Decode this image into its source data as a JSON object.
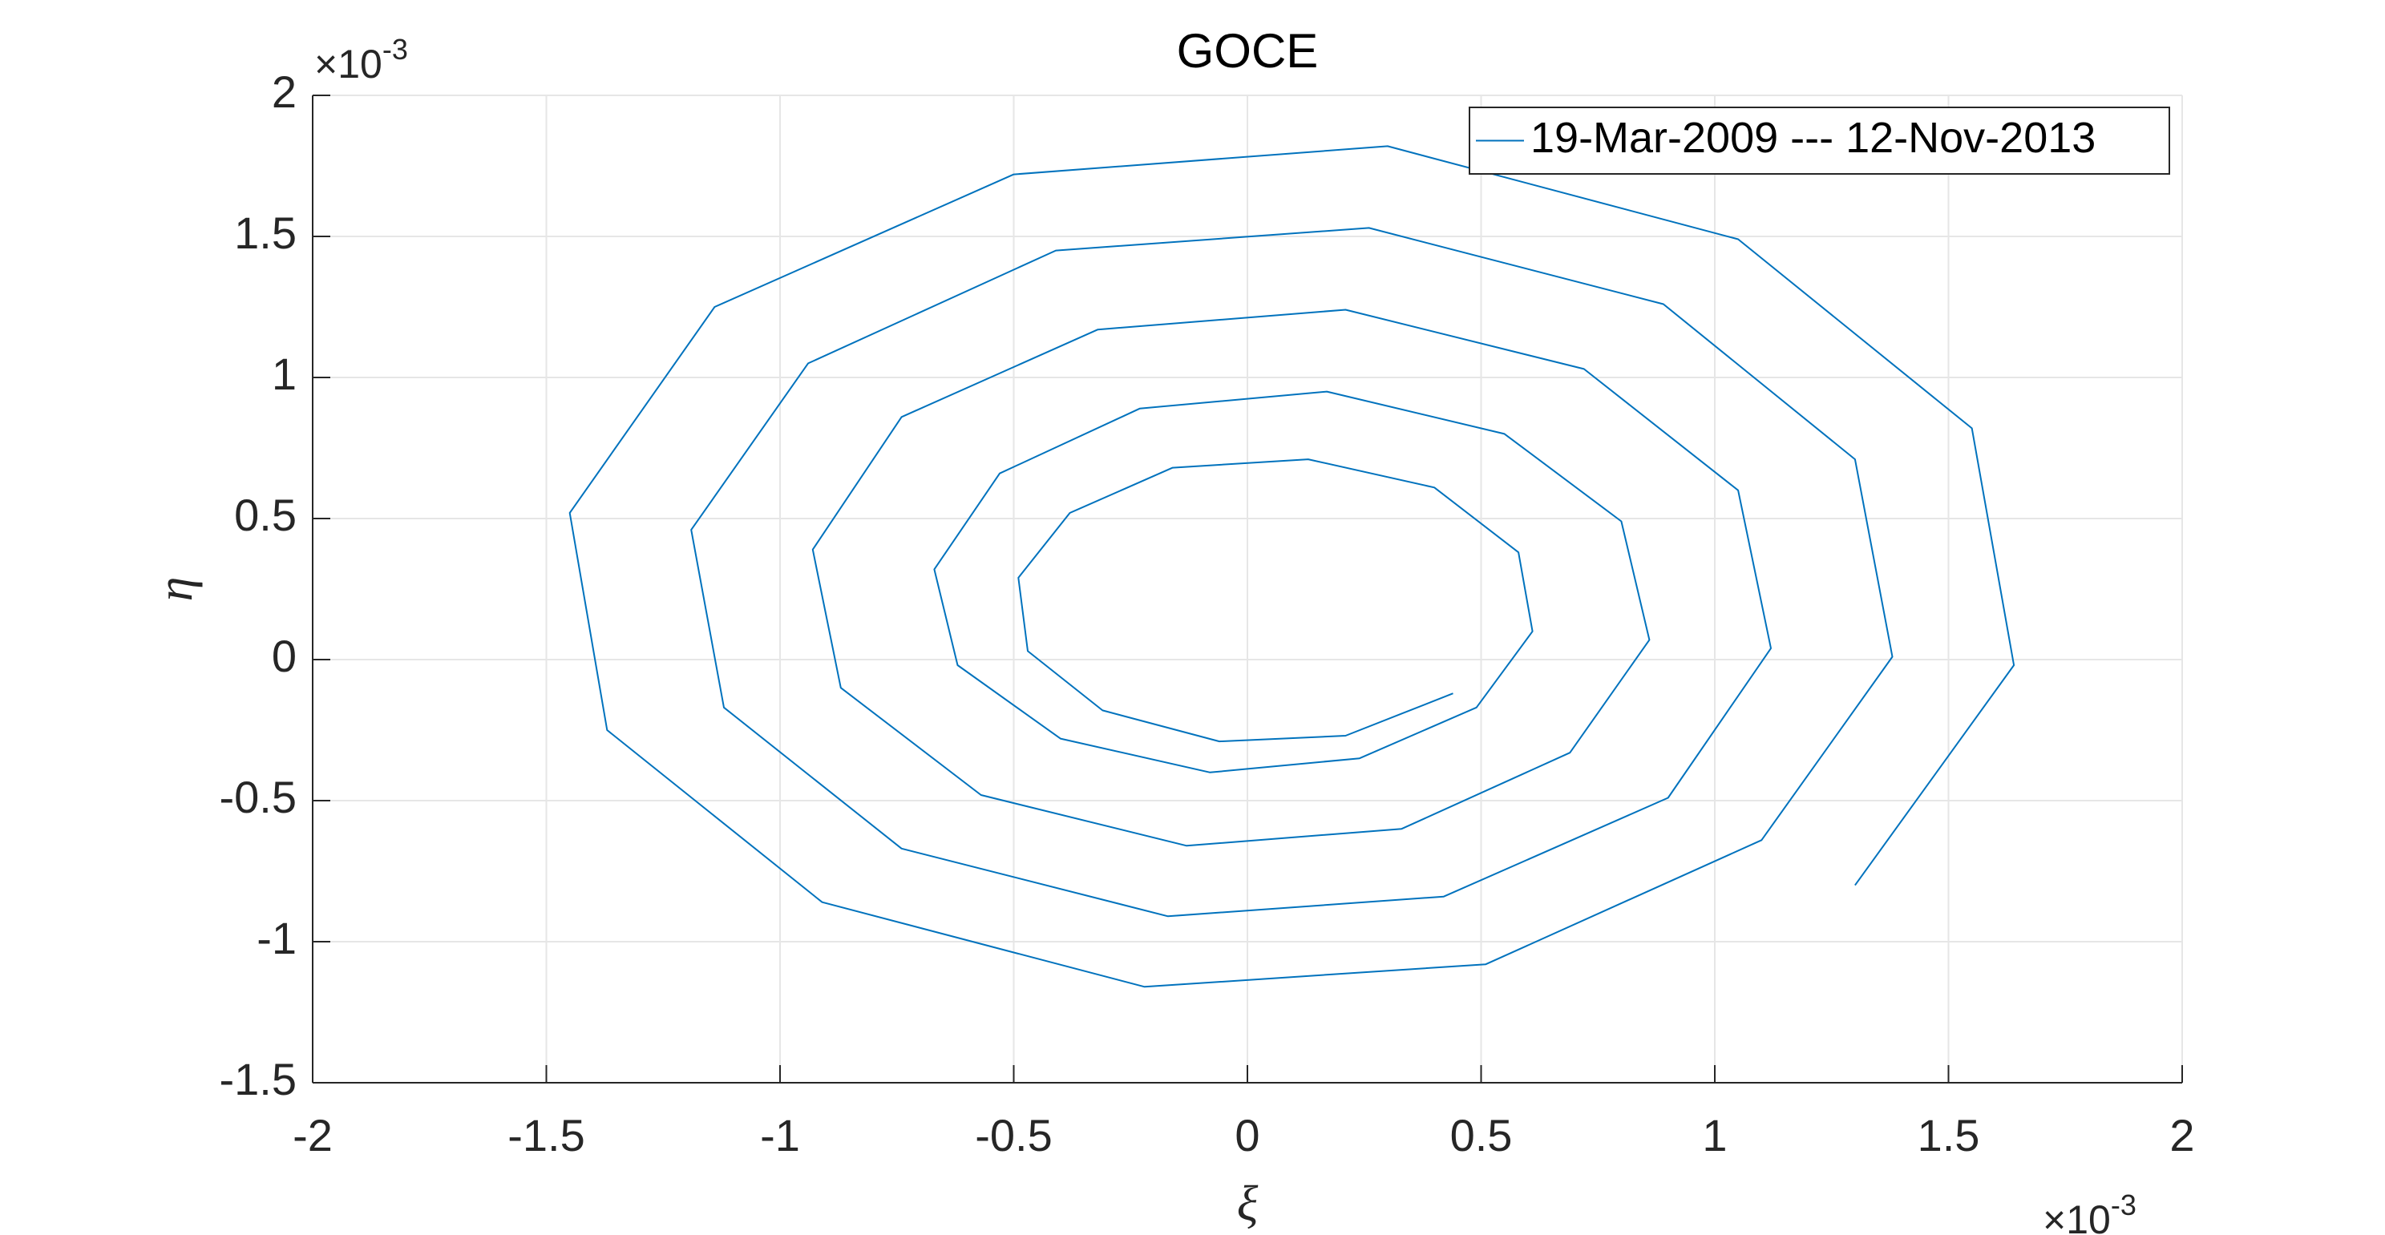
{
  "chart_data": {
    "type": "line",
    "title": "GOCE",
    "xlabel": "ξ",
    "ylabel": "η",
    "x_exponent": {
      "base": "×10",
      "power": "-3"
    },
    "y_exponent": {
      "base": "×10",
      "power": "-3"
    },
    "xlim": [
      -2,
      2
    ],
    "ylim": [
      -1.5,
      2
    ],
    "xticks": [
      -2,
      -1.5,
      -1,
      -0.5,
      0,
      0.5,
      1,
      1.5,
      2
    ],
    "yticks": [
      -1.5,
      -1,
      -0.5,
      0,
      0.5,
      1,
      1.5,
      2
    ],
    "grid": true,
    "legend_position": "top-right",
    "x": [
      1.3,
      1.64,
      1.55,
      1.05,
      0.3,
      -0.5,
      -1.14,
      -1.45,
      -1.37,
      -0.91,
      -0.22,
      0.51,
      1.1,
      1.38,
      1.3,
      0.89,
      0.26,
      -0.41,
      -0.94,
      -1.19,
      -1.12,
      -0.74,
      -0.17,
      0.42,
      0.9,
      1.12,
      1.05,
      0.72,
      0.21,
      -0.32,
      -0.74,
      -0.93,
      -0.87,
      -0.57,
      -0.13,
      0.33,
      0.69,
      0.86,
      0.8,
      0.55,
      0.17,
      -0.23,
      -0.53,
      -0.67,
      -0.62,
      -0.4,
      -0.08,
      0.24,
      0.49,
      0.61,
      0.58,
      0.4,
      0.13,
      -0.16,
      -0.38,
      -0.49,
      -0.47,
      -0.31,
      -0.06,
      0.21,
      0.44
    ],
    "series": [
      {
        "name": "19-Mar-2009 --- 12-Nov-2013",
        "color": "#0072bd",
        "values": [
          -0.8,
          -0.02,
          0.82,
          1.49,
          1.82,
          1.72,
          1.25,
          0.52,
          -0.25,
          -0.86,
          -1.16,
          -1.08,
          -0.64,
          0.01,
          0.71,
          1.26,
          1.53,
          1.45,
          1.05,
          0.46,
          -0.17,
          -0.67,
          -0.91,
          -0.84,
          -0.49,
          0.04,
          0.6,
          1.03,
          1.24,
          1.17,
          0.86,
          0.39,
          -0.1,
          -0.48,
          -0.66,
          -0.6,
          -0.33,
          0.07,
          0.49,
          0.8,
          0.95,
          0.89,
          0.66,
          0.32,
          -0.02,
          -0.28,
          -0.4,
          -0.35,
          -0.17,
          0.1,
          0.38,
          0.61,
          0.71,
          0.68,
          0.52,
          0.29,
          0.03,
          -0.18,
          -0.29,
          -0.27,
          -0.12
        ]
      }
    ]
  }
}
